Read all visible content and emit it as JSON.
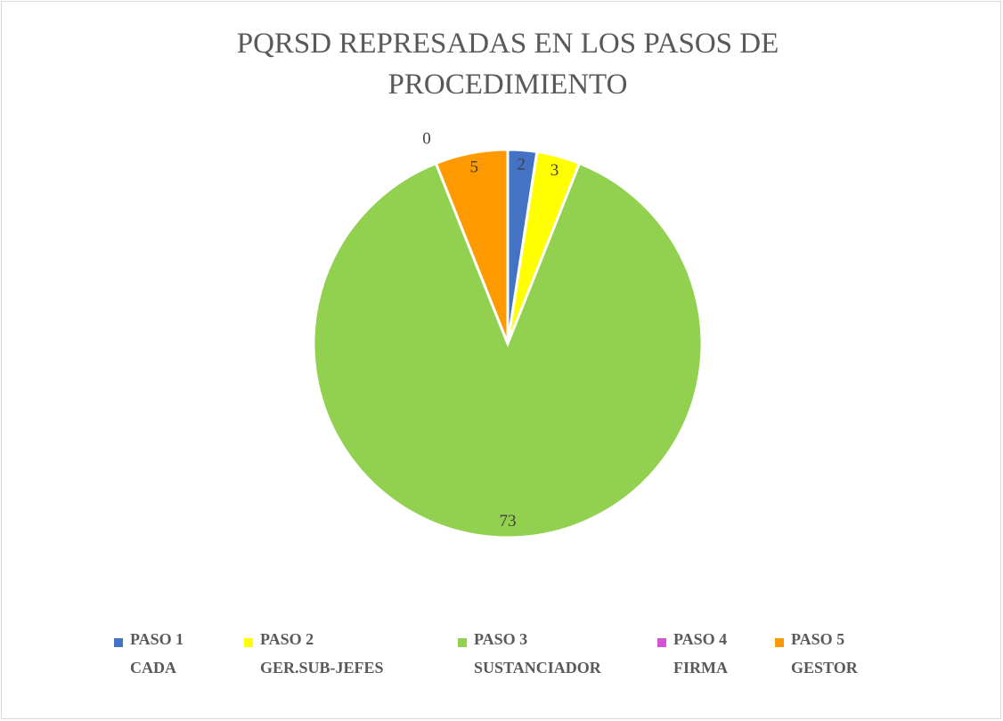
{
  "chart_data": {
    "type": "pie",
    "title": "PQRSD REPRESADAS EN LOS PASOS DE PROCEDIMIENTO",
    "categories": [
      "PASO 1\nCADA",
      "PASO 2\nGER.SUB-JEFES",
      "PASO 3\nSUSTANCIADOR",
      "PASO 4\nFIRMA",
      "PASO 5\nGESTOR"
    ],
    "values": [
      2,
      3,
      73,
      0,
      5
    ],
    "colors": [
      "#4472c4",
      "#ffff00",
      "#92d050",
      "#d452d4",
      "#ff9900"
    ],
    "legend": "bottom"
  }
}
